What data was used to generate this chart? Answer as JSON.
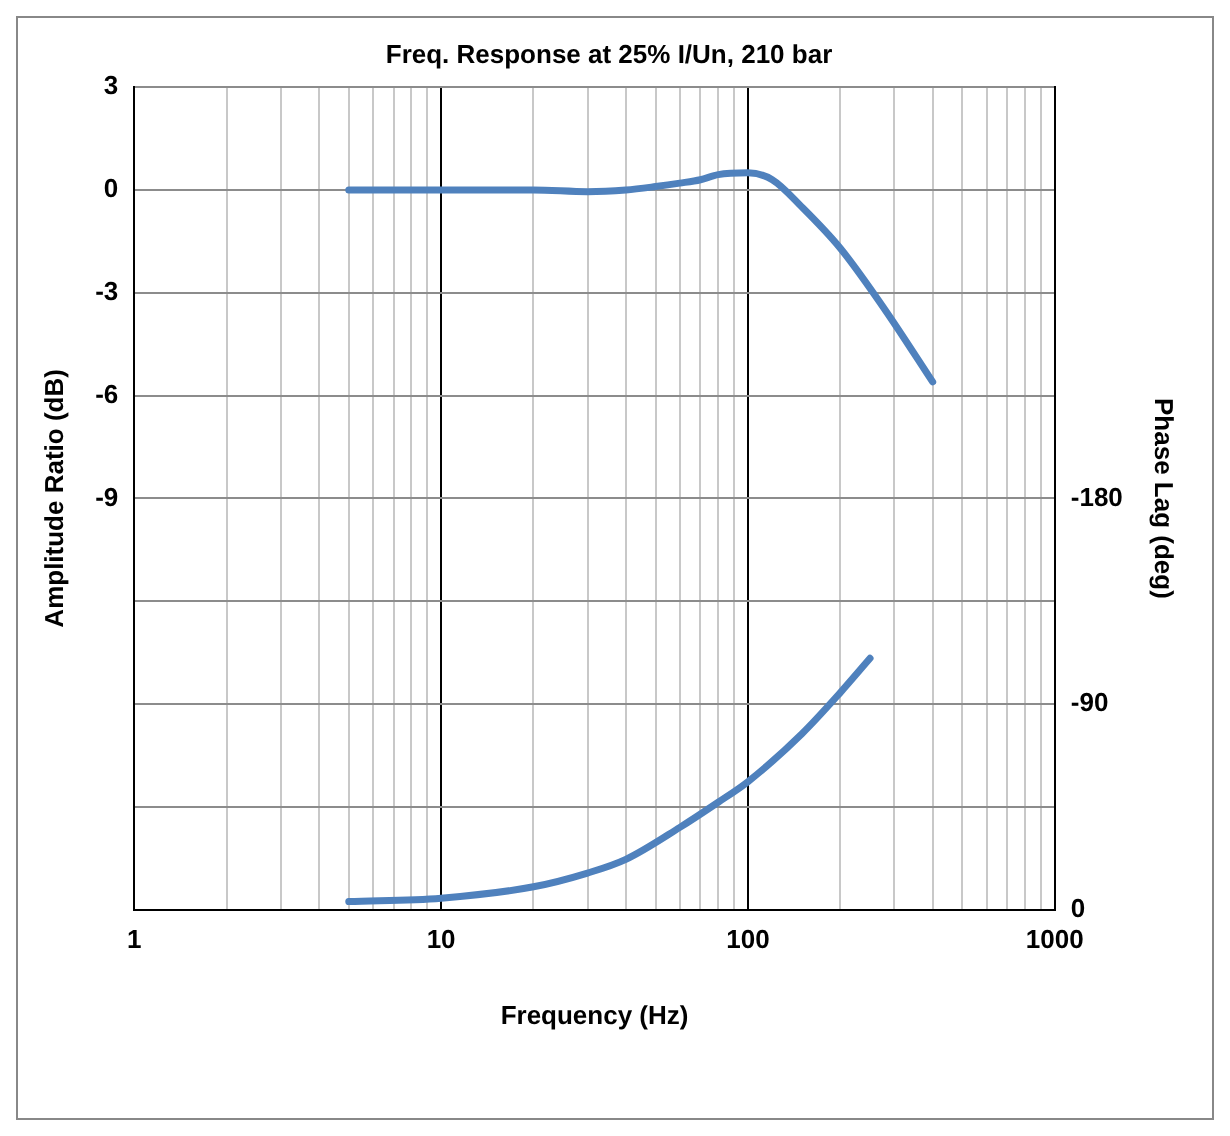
{
  "chart_data": {
    "type": "line",
    "title": "Freq. Response at 25% I/Un, 210 bar",
    "xlabel": "Frequency (Hz)",
    "ylabel": "Amplitude Ratio (dB)",
    "y2label": "Phase Lag (deg)",
    "log": "x",
    "grid": true,
    "legend": false,
    "marker": "none",
    "line_style": "solid",
    "xlim": [
      1,
      1000
    ],
    "xticks": [
      1,
      {
        "value": 2,
        "label": null
      },
      {
        "value": 3,
        "label": null
      },
      {
        "value": 4,
        "label": null
      },
      {
        "value": 5,
        "label": null
      },
      {
        "value": 6,
        "label": null
      },
      {
        "value": 7,
        "label": null
      },
      {
        "value": 8,
        "label": null
      },
      {
        "value": 9,
        "label": null
      },
      10,
      {
        "value": 20,
        "label": null
      },
      {
        "value": 30,
        "label": null
      },
      {
        "value": 40,
        "label": null
      },
      {
        "value": 50,
        "label": null
      },
      {
        "value": 60,
        "label": null
      },
      {
        "value": 70,
        "label": null
      },
      {
        "value": 80,
        "label": null
      },
      {
        "value": 90,
        "label": null
      },
      100,
      {
        "value": 200,
        "label": null
      },
      {
        "value": 300,
        "label": null
      },
      {
        "value": 400,
        "label": null
      },
      {
        "value": 500,
        "label": null
      },
      {
        "value": 600,
        "label": null
      },
      {
        "value": 700,
        "label": null
      },
      {
        "value": 800,
        "label": null
      },
      {
        "value": 900,
        "label": null
      },
      1000
    ],
    "ylim": [
      -21,
      3
    ],
    "yticks": [
      3,
      0,
      -3,
      -6,
      -9,
      {
        "value": -12,
        "label": null
      },
      {
        "value": -15,
        "label": null
      },
      {
        "value": -18,
        "label": null
      },
      {
        "value": -21,
        "label": null
      }
    ],
    "y2lim": [
      0,
      -360
    ],
    "y2ticks": [
      0,
      -90,
      -180
    ],
    "series": [
      {
        "color": "#4f81bd",
        "x": [
          5,
          10,
          20,
          30,
          40,
          50,
          60,
          70,
          80,
          100,
          120,
          150,
          200,
          280,
          400
        ],
        "values": [
          0,
          0,
          0,
          -0.05,
          0,
          0.1,
          0.2,
          0.3,
          0.45,
          0.5,
          0.3,
          -0.5,
          -1.7,
          -3.5,
          -5.6
        ]
      },
      {
        "color": "#4f81bd",
        "axis": "y2",
        "x": [
          5,
          10,
          20,
          30,
          40,
          60,
          80,
          100,
          150,
          200,
          250
        ],
        "values": [
          -3.5,
          -5,
          -10,
          -16,
          -22,
          -36,
          -47,
          -56,
          -77,
          -95,
          -110
        ]
      }
    ]
  }
}
